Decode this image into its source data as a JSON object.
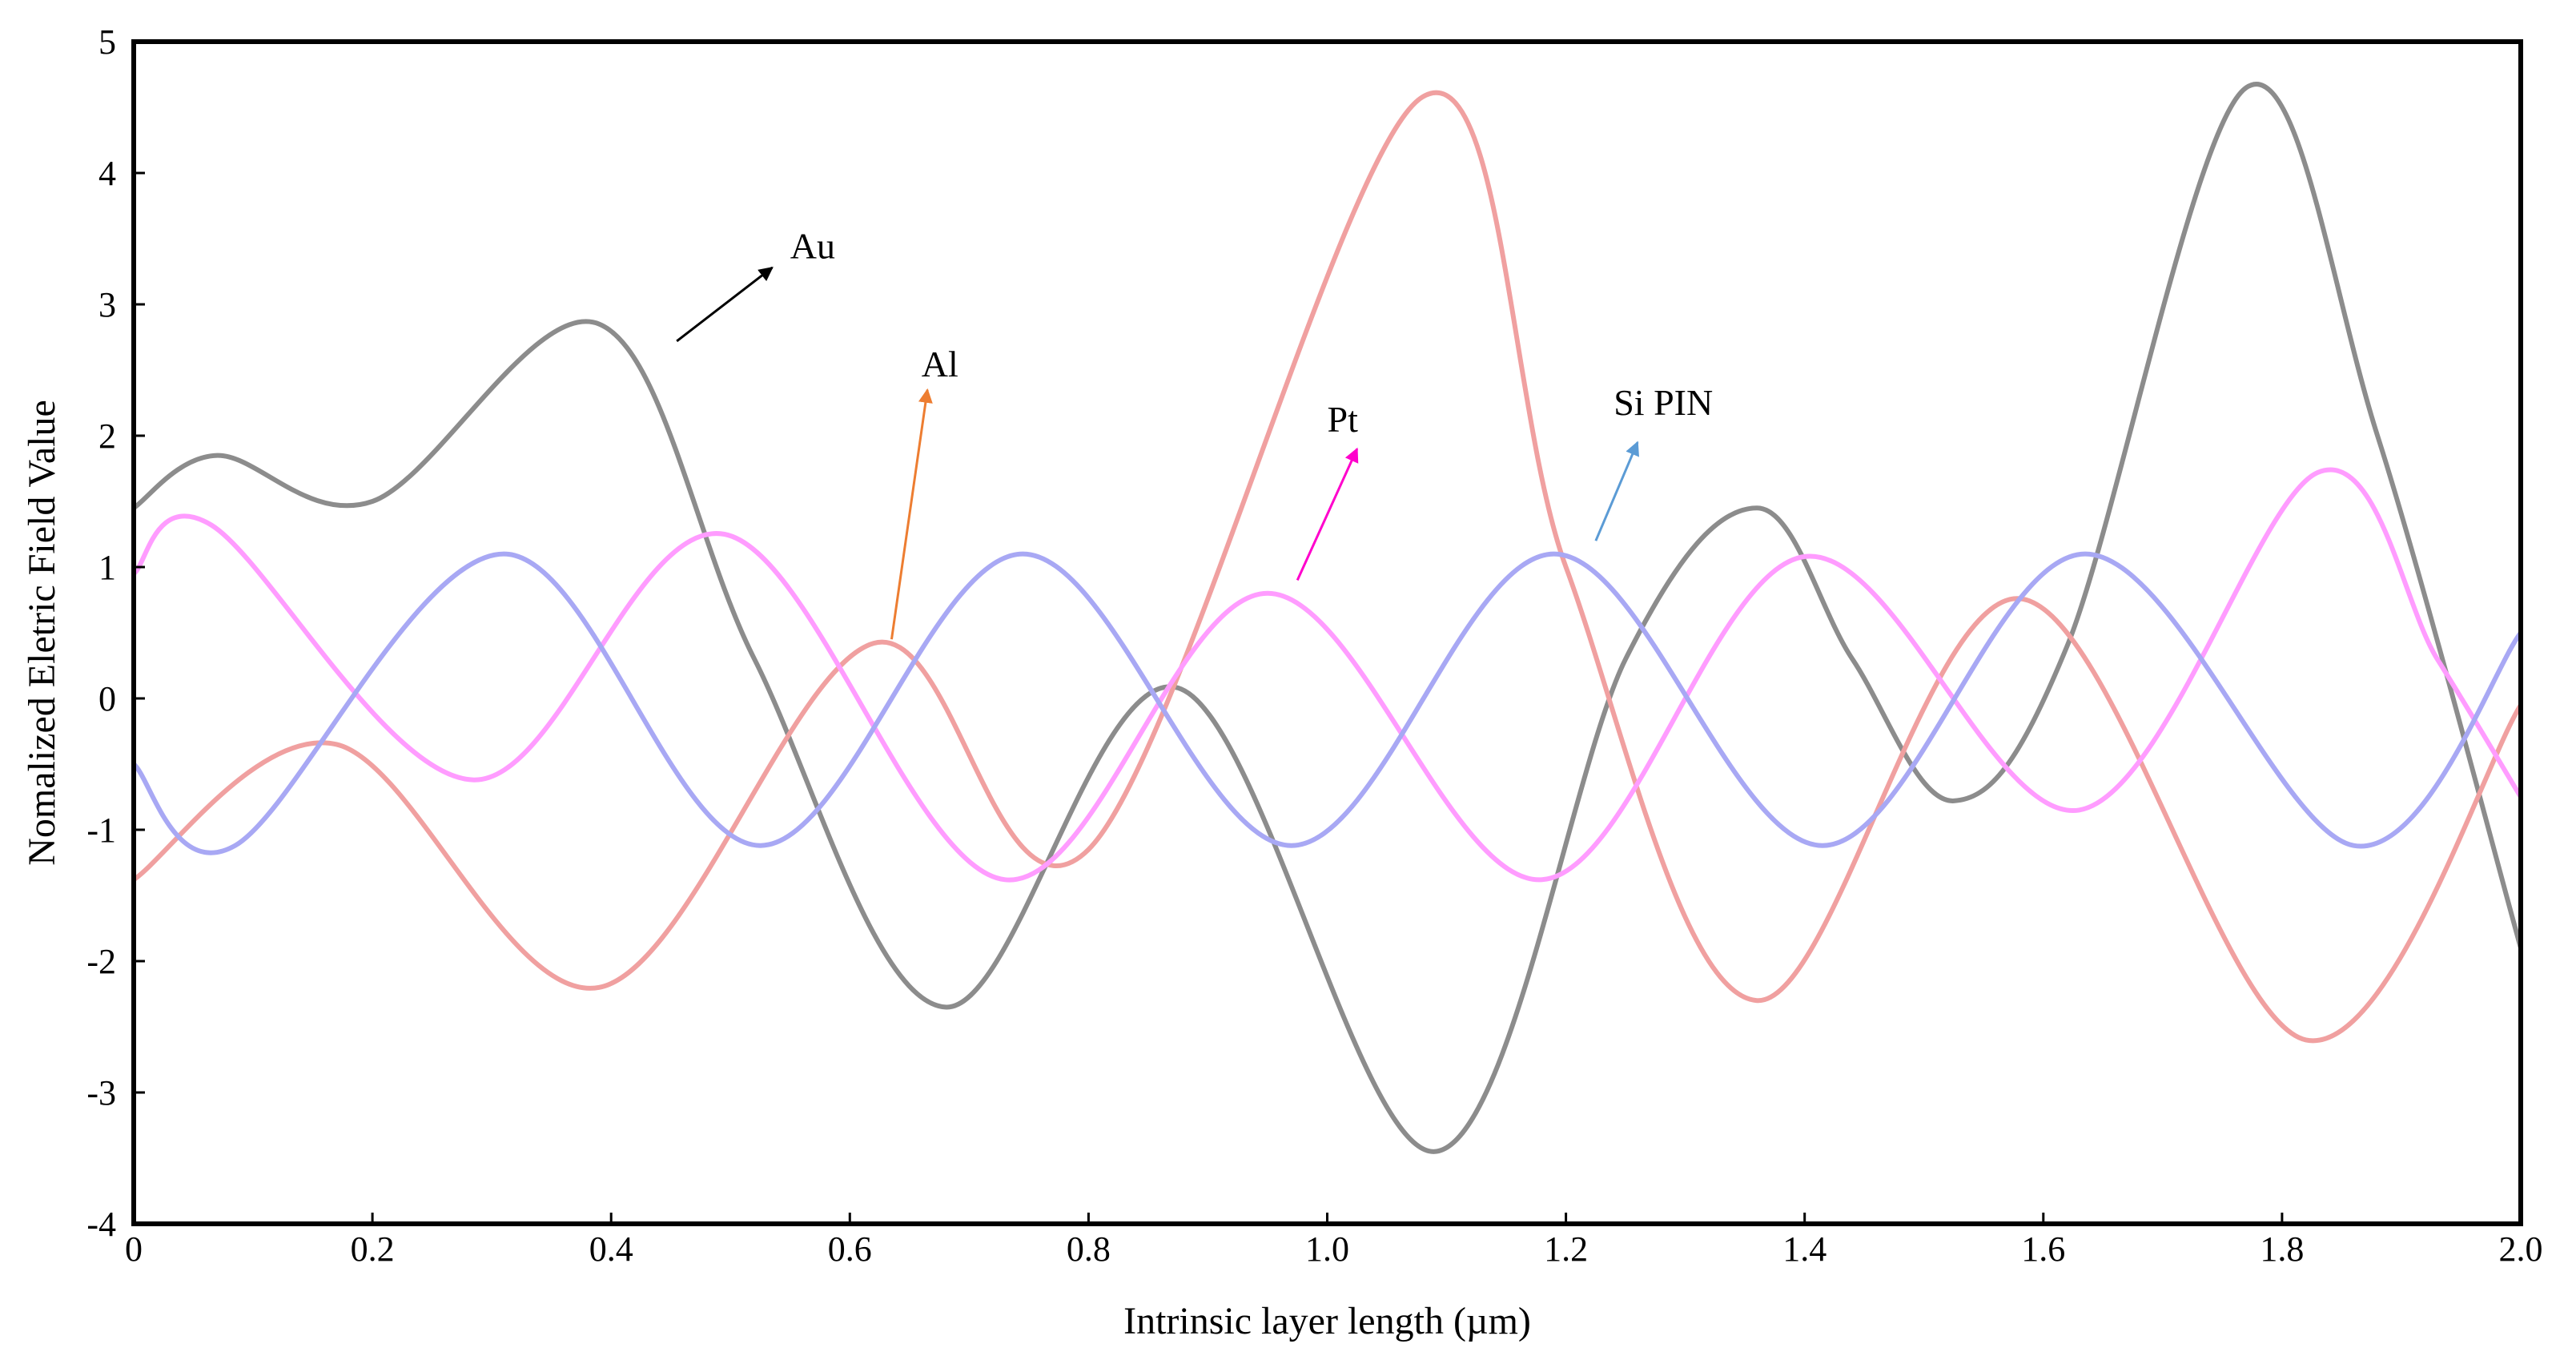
{
  "chart_data": {
    "type": "line",
    "title": "",
    "xlabel": "Intrinsic layer length (µm)",
    "ylabel": "Nomalized Eletric Field Value",
    "xlim": [
      0,
      2.0
    ],
    "ylim": [
      -4,
      5
    ],
    "x_ticks": [
      0,
      0.2,
      0.4,
      0.6,
      0.8,
      1.0,
      1.2,
      1.4,
      1.6,
      1.8,
      2.0
    ],
    "x_tick_labels": [
      "0",
      "0.2",
      "0.4",
      "0.6",
      "0.8",
      "1.0",
      "1.2",
      "1.4",
      "1.6",
      "1.8",
      "2.0"
    ],
    "y_ticks": [
      -4,
      -3,
      -2,
      -1,
      0,
      1,
      2,
      3,
      4,
      5
    ],
    "y_tick_labels": [
      "-4",
      "-3",
      "-2",
      "-1",
      "0",
      "1",
      "2",
      "3",
      "4",
      "5"
    ],
    "grid": false,
    "legend": "none",
    "series": [
      {
        "name": "Au",
        "color": "#8c8c8c",
        "points": [
          [
            0,
            1.45
          ],
          [
            0.07,
            1.85
          ],
          [
            0.2,
            1.5
          ],
          [
            0.39,
            2.85
          ],
          [
            0.52,
            0.3
          ],
          [
            0.68,
            -2.35
          ],
          [
            0.875,
            0.08
          ],
          [
            1.09,
            -3.45
          ],
          [
            1.25,
            0.3
          ],
          [
            1.36,
            1.45
          ],
          [
            1.44,
            0.3
          ],
          [
            1.525,
            -0.78
          ],
          [
            1.62,
            0.4
          ],
          [
            1.77,
            4.65
          ],
          [
            1.88,
            2.0
          ],
          [
            2.0,
            -1.9
          ]
        ]
      },
      {
        "name": "Al",
        "color": "#f0a0a0",
        "points": [
          [
            0,
            -1.38
          ],
          [
            0.17,
            -0.35
          ],
          [
            0.39,
            -2.2
          ],
          [
            0.62,
            0.42
          ],
          [
            0.8,
            -1.15
          ],
          [
            1.08,
            4.58
          ],
          [
            1.2,
            1.0
          ],
          [
            1.36,
            -2.3
          ],
          [
            1.58,
            0.76
          ],
          [
            1.82,
            -2.6
          ],
          [
            2.0,
            -0.05
          ]
        ]
      },
      {
        "name": "Pt",
        "color": "#ff9cff",
        "points": [
          [
            0,
            0.95
          ],
          [
            0.065,
            1.32
          ],
          [
            0.285,
            -0.62
          ],
          [
            0.495,
            1.25
          ],
          [
            0.73,
            -1.38
          ],
          [
            0.95,
            0.8
          ],
          [
            1.18,
            -1.38
          ],
          [
            1.4,
            1.08
          ],
          [
            1.63,
            -0.85
          ],
          [
            1.83,
            1.72
          ],
          [
            1.93,
            0.3
          ],
          [
            2.0,
            -0.75
          ]
        ]
      },
      {
        "name": "Si PIN",
        "color": "#a8a8f4",
        "points": [
          [
            0,
            -0.5
          ],
          [
            0.085,
            -1.12
          ],
          [
            0.31,
            1.1
          ],
          [
            0.525,
            -1.12
          ],
          [
            0.745,
            1.1
          ],
          [
            0.97,
            -1.12
          ],
          [
            1.19,
            1.1
          ],
          [
            1.415,
            -1.12
          ],
          [
            1.635,
            1.1
          ],
          [
            1.86,
            -1.12
          ],
          [
            2.0,
            0.5
          ]
        ]
      }
    ],
    "annotations": [
      {
        "label": "Au",
        "color": "#000000",
        "text_pos": [
          0.55,
          3.35
        ],
        "arrow_from": [
          0.455,
          2.72
        ],
        "arrow_to": [
          0.535,
          3.28
        ]
      },
      {
        "label": "Al",
        "color": "#ed7d31",
        "text_pos": [
          0.66,
          2.45
        ],
        "arrow_from": [
          0.635,
          0.45
        ],
        "arrow_to": [
          0.665,
          2.35
        ]
      },
      {
        "label": "Pt",
        "color": "#ff00cc",
        "text_pos": [
          1.0,
          2.03
        ],
        "arrow_from": [
          0.975,
          0.9
        ],
        "arrow_to": [
          1.025,
          1.9
        ]
      },
      {
        "label": "Si PIN",
        "color": "#5b9bd5",
        "text_pos": [
          1.24,
          2.16
        ],
        "arrow_from": [
          1.225,
          1.2
        ],
        "arrow_to": [
          1.26,
          1.95
        ]
      }
    ]
  }
}
